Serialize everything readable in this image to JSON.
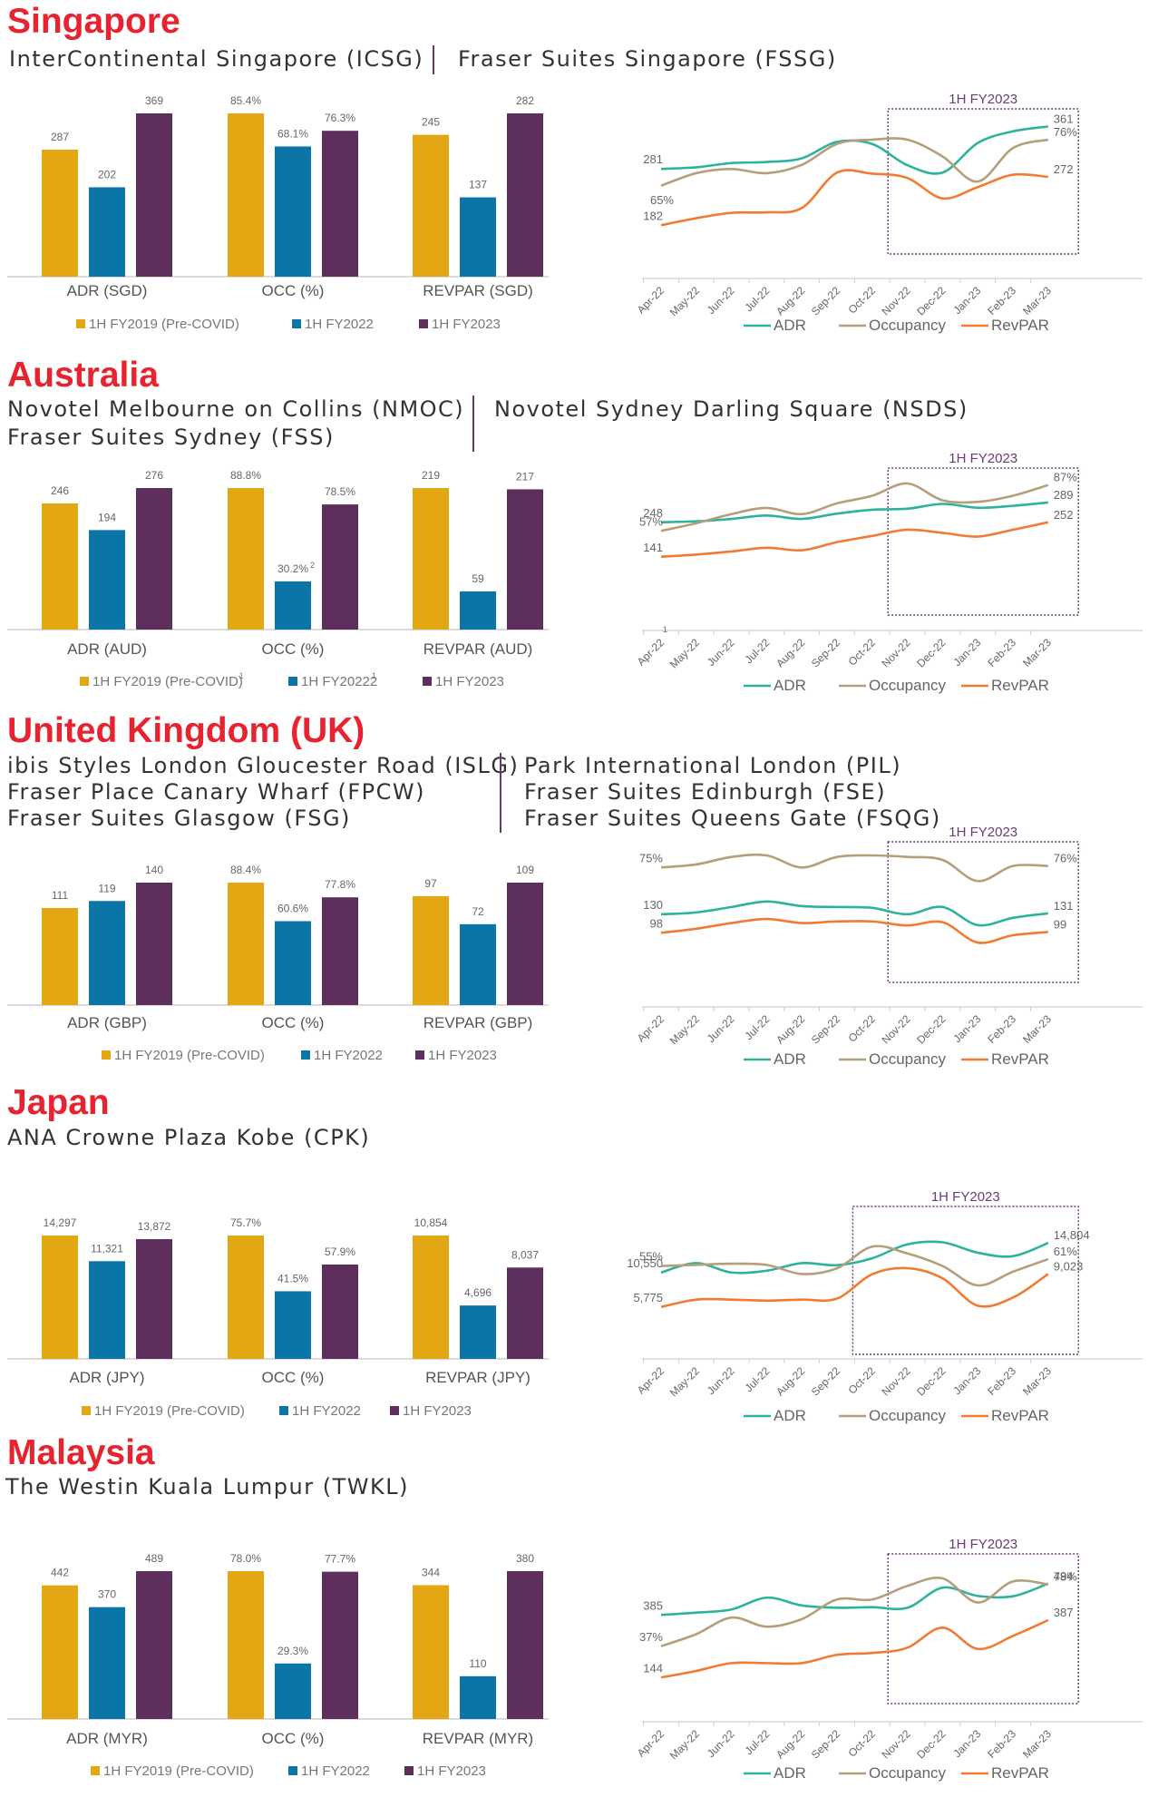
{
  "sections": [
    {
      "id": "singapore",
      "country": "Singapore",
      "hotels_left": [
        "InterContinental Singapore (ICSG)"
      ],
      "hotels_right": [
        "Fraser Suites Singapore (FSSG)"
      ],
      "bar_chart": {
        "type": "bar",
        "categories": [
          "ADR (SGD)",
          "OCC (%)",
          "REVPAR (SGD)"
        ],
        "series": [
          {
            "name": "1H FY2019 (Pre-COVID)",
            "values": [
              287,
              85.4,
              245
            ],
            "labels": [
              "287",
              "85.4%",
              "245"
            ]
          },
          {
            "name": "1H FY2022",
            "values": [
              202,
              68.1,
              137
            ],
            "labels": [
              "202",
              "68.1%",
              "137"
            ]
          },
          {
            "name": "1H FY2023",
            "values": [
              369,
              76.3,
              282
            ],
            "labels": [
              "369",
              "76.3%",
              "282"
            ]
          }
        ]
      },
      "line_chart": {
        "type": "line",
        "x": [
          "Apr-22",
          "May-22",
          "Jun-22",
          "Jul-22",
          "Aug-22",
          "Sep-22",
          "Oct-22",
          "Nov-22",
          "Dec-22",
          "Jan-23",
          "Feb-23",
          "Mar-23"
        ],
        "highlight_label": "1H FY2023",
        "highlight_range": [
          "Nov-22",
          "Mar-23"
        ],
        "series": [
          {
            "name": "ADR",
            "values": [
              281,
              284,
              292,
              294,
              301,
              332,
              328,
              288,
              274,
              330,
              352,
              361
            ],
            "start_label": "281",
            "end_label": "361"
          },
          {
            "name": "Occupancy",
            "values": [
              65,
              68,
              69,
              68,
              70,
              75,
              76,
              76,
              72,
              66,
              74,
              76
            ],
            "start_label": "",
            "end_label": "76%"
          },
          {
            "name": "RevPAR",
            "values": [
              182,
              195,
              205,
              206,
              214,
              280,
              278,
              270,
              232,
              253,
              276,
              272
            ],
            "start_label": "182",
            "end_label": "272"
          }
        ],
        "extra_labels": [
          {
            "text": "65%",
            "anchor": "start"
          }
        ]
      }
    },
    {
      "id": "australia",
      "country": "Australia",
      "hotels_left": [
        "Novotel Melbourne on Collins (NMOC)",
        "Fraser Suites Sydney (FSS)"
      ],
      "hotels_right": [
        "Novotel Sydney Darling Square (NSDS)"
      ],
      "bar_chart": {
        "type": "bar",
        "categories": [
          "ADR (AUD)",
          "OCC (%)",
          "REVPAR (AUD)"
        ],
        "series": [
          {
            "name": "1H FY2019 (Pre-COVID)",
            "legend_sup": "1",
            "values": [
              246,
              88.8,
              219
            ],
            "labels": [
              "246",
              "88.8%",
              "219"
            ]
          },
          {
            "name": "1H FY20222",
            "legend_sup": "1",
            "values": [
              194,
              30.2,
              59
            ],
            "labels": [
              "194",
              "30.2%",
              "59"
            ],
            "label_sup": [
              "",
              "2",
              ""
            ]
          },
          {
            "name": "1H FY2023",
            "values": [
              276,
              78.5,
              217
            ],
            "labels": [
              "276",
              "78.5%",
              "217"
            ]
          }
        ]
      },
      "line_chart": {
        "type": "line",
        "x": [
          "Apr-22",
          "May-22",
          "Jun-22",
          "Jul-22",
          "Aug-22",
          "Sep-22",
          "Oct-22",
          "Nov-22",
          "Dec-22",
          "Jan-23",
          "Feb-23",
          "Mar-23"
        ],
        "x_first_sup": "1",
        "highlight_label": "1H FY2023",
        "highlight_range": [
          "Nov-22",
          "Mar-23"
        ],
        "series": [
          {
            "name": "ADR",
            "values": [
              248,
              250,
              255,
              262,
              255,
              266,
              274,
              276,
              286,
              278,
              282,
              289
            ],
            "start_label": "248",
            "end_label": "289"
          },
          {
            "name": "Occupancy",
            "values": [
              57,
              62,
              68,
              72,
              68,
              75,
              80,
              88,
              77,
              76,
              80,
              87
            ],
            "start_label": "57%",
            "end_label": "87%"
          },
          {
            "name": "RevPAR",
            "values": [
              141,
              148,
              158,
              170,
              162,
              188,
              208,
              228,
              218,
              206,
              228,
              252
            ],
            "start_label": "141",
            "end_label": "252"
          }
        ]
      }
    },
    {
      "id": "uk",
      "country": "United Kingdom (UK)",
      "hotels_left": [
        "ibis Styles London Gloucester Road (ISLG)",
        "Fraser Place Canary Wharf (FPCW)",
        "Fraser Suites Glasgow (FSG)"
      ],
      "hotels_right": [
        "Park International London (PIL)",
        "Fraser Suites Edinburgh (FSE)",
        "Fraser Suites Queens Gate (FSQG)"
      ],
      "bar_chart": {
        "type": "bar",
        "categories": [
          "ADR (GBP)",
          "OCC (%)",
          "REVPAR (GBP)"
        ],
        "series": [
          {
            "name": "1H FY2019 (Pre-COVID)",
            "values": [
              111,
              88.4,
              97
            ],
            "labels": [
              "111",
              "88.4%",
              "97"
            ]
          },
          {
            "name": "1H FY2022",
            "values": [
              119,
              60.6,
              72
            ],
            "labels": [
              "119",
              "60.6%",
              "72"
            ]
          },
          {
            "name": "1H FY2023",
            "values": [
              140,
              77.8,
              109
            ],
            "labels": [
              "140",
              "77.8%",
              "109"
            ]
          }
        ]
      },
      "line_chart": {
        "type": "line",
        "x": [
          "Apr-22",
          "May-22",
          "Jun-22",
          "Jul-22",
          "Aug-22",
          "Sep-22",
          "Oct-22",
          "Nov-22",
          "Dec-22",
          "Jan-23",
          "Feb-23",
          "Mar-23"
        ],
        "highlight_label": "1H FY2023",
        "highlight_range": [
          "Nov-22",
          "Mar-23"
        ],
        "series": [
          {
            "name": "ADR",
            "values": [
              130,
              132,
              138,
              144,
              139,
              138,
              137,
              130,
              138,
              118,
              126,
              131
            ],
            "start_label": "130",
            "end_label": "131"
          },
          {
            "name": "Occupancy",
            "values": [
              75,
              77,
              82,
              83,
              75,
              82,
              83,
              82,
              80,
              66,
              76,
              76
            ],
            "start_label": "75%",
            "end_label": "76%"
          },
          {
            "name": "RevPAR",
            "values": [
              98,
              103,
              110,
              115,
              110,
              112,
              112,
              107,
              111,
              86,
              95,
              99
            ],
            "start_label": "98",
            "end_label": "99"
          }
        ]
      }
    },
    {
      "id": "japan",
      "country": "Japan",
      "hotels_left": [
        "ANA Crowne Plaza Kobe (CPK)"
      ],
      "hotels_right": [],
      "bar_chart": {
        "type": "bar",
        "categories": [
          "ADR (JPY)",
          "OCC (%)",
          "REVPAR (JPY)"
        ],
        "series": [
          {
            "name": "1H FY2019 (Pre-COVID)",
            "values": [
              14297,
              75.7,
              10854
            ],
            "labels": [
              "14,297",
              "75.7%",
              "10,854"
            ]
          },
          {
            "name": "1H FY2022",
            "values": [
              11321,
              41.5,
              4696
            ],
            "labels": [
              "11,321",
              "41.5%",
              "4,696"
            ]
          },
          {
            "name": "1H FY2023",
            "values": [
              13872,
              57.9,
              8037
            ],
            "labels": [
              "13,872",
              "57.9%",
              "8,037"
            ]
          }
        ]
      },
      "line_chart": {
        "type": "line",
        "x": [
          "Apr-22",
          "May-22",
          "Jun-22",
          "Jul-22",
          "Aug-22",
          "Sep-22",
          "Oct-22",
          "Nov-22",
          "Dec-22",
          "Jan-23",
          "Feb-23",
          "Mar-23"
        ],
        "highlight_label": "1H FY2023",
        "highlight_range": [
          "Oct-22",
          "Mar-23"
        ],
        "series": [
          {
            "name": "ADR",
            "values": [
              10550,
              11900,
              10550,
              10800,
              11900,
              11600,
              12600,
              14600,
              14900,
              13400,
              12900,
              14804
            ],
            "start_label": "10,550",
            "end_label": "14,804"
          },
          {
            "name": "Occupancy",
            "values": [
              55,
              56,
              57,
              56,
              48,
              53,
              72,
              66,
              55,
              38,
              50,
              61
            ],
            "start_label": "55%",
            "end_label": "61%"
          },
          {
            "name": "RevPAR",
            "values": [
              5775,
              6500,
              6500,
              6400,
              6500,
              6600,
              9000,
              9600,
              8600,
              5900,
              6700,
              9023
            ],
            "start_label": "5,775",
            "end_label": "9,023"
          }
        ]
      }
    },
    {
      "id": "malaysia",
      "country": "Malaysia",
      "hotels_left": [
        "The Westin Kuala Lumpur (TWKL)"
      ],
      "hotels_right": [],
      "bar_chart": {
        "type": "bar",
        "categories": [
          "ADR (MYR)",
          "OCC (%)",
          "REVPAR (MYR)"
        ],
        "series": [
          {
            "name": "1H FY2019 (Pre-COVID)",
            "values": [
              442,
              78.0,
              344
            ],
            "labels": [
              "442",
              "78.0%",
              "344"
            ]
          },
          {
            "name": "1H FY2022",
            "values": [
              370,
              29.3,
              110
            ],
            "labels": [
              "370",
              "29.3%",
              "110"
            ]
          },
          {
            "name": "1H FY2023",
            "values": [
              489,
              77.7,
              380
            ],
            "labels": [
              "489",
              "77.7%",
              "380"
            ]
          }
        ]
      },
      "line_chart": {
        "type": "line",
        "x": [
          "Apr-22",
          "May-22",
          "Jun-22",
          "Jul-22",
          "Aug-22",
          "Sep-22",
          "Oct-22",
          "Nov-22",
          "Dec-22",
          "Jan-23",
          "Feb-23",
          "Mar-23"
        ],
        "highlight_label": "1H FY2023",
        "highlight_range": [
          "Nov-22",
          "Mar-23"
        ],
        "series": [
          {
            "name": "ADR",
            "values": [
              385,
              393,
              404,
              445,
              418,
              410,
              412,
              410,
              480,
              451,
              450,
              494
            ],
            "start_label": "385",
            "end_label": "494"
          },
          {
            "name": "Occupancy",
            "values": [
              37,
              45,
              56,
              50,
              55,
              68,
              68,
              77,
              82,
              66,
              80,
              78
            ],
            "start_label": "37%",
            "end_label": "78%"
          },
          {
            "name": "RevPAR",
            "values": [
              144,
              172,
              205,
              205,
              205,
              240,
              248,
              270,
              355,
              265,
              320,
              387
            ],
            "start_label": "144",
            "end_label": "387"
          }
        ]
      }
    }
  ],
  "colors": {
    "fy2019": "#e3a714",
    "fy2022": "#0b75a8",
    "fy2023": "#5e2f5d",
    "adr": "#2db39b",
    "occupancy": "#b59e7a",
    "revpar": "#f27a32",
    "highlight_box": "#6b3a79",
    "country": "#e8232f"
  }
}
